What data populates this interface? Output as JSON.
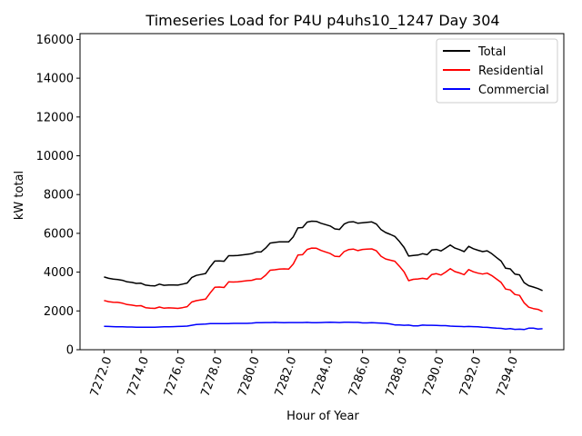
{
  "chart_data": {
    "type": "line",
    "title": "Timeseries Load for P4U p4uhs10_1247  Day 304",
    "xlabel": "Hour of Year",
    "ylabel": "kW total",
    "xlim": [
      7270.7,
      7296.9
    ],
    "ylim": [
      0,
      16300
    ],
    "xticks": [
      7272.0,
      7274.0,
      7276.0,
      7278.0,
      7280.0,
      7282.0,
      7284.0,
      7286.0,
      7288.0,
      7290.0,
      7292.0,
      7294.0
    ],
    "xtick_labels": [
      "7272.0",
      "7274.0",
      "7276.0",
      "7278.0",
      "7280.0",
      "7282.0",
      "7284.0",
      "7286.0",
      "7288.0",
      "7290.0",
      "7292.0",
      "7294.0"
    ],
    "yticks": [
      0,
      2000,
      4000,
      6000,
      8000,
      10000,
      12000,
      14000,
      16000
    ],
    "ytick_labels": [
      "0",
      "2000",
      "4000",
      "6000",
      "8000",
      "10000",
      "12000",
      "14000",
      "16000"
    ],
    "legend_position": "top-right",
    "series": [
      {
        "name": "Total",
        "color": "#000000",
        "x": [
          7272.0,
          7272.25,
          7272.5,
          7272.75,
          7273.0,
          7273.25,
          7273.5,
          7273.75,
          7274.0,
          7274.25,
          7274.5,
          7274.75,
          7275.0,
          7275.25,
          7275.5,
          7275.75,
          7276.0,
          7276.25,
          7276.5,
          7276.75,
          7277.0,
          7277.25,
          7277.5,
          7277.75,
          7278.0,
          7278.25,
          7278.5,
          7278.75,
          7279.0,
          7279.25,
          7279.5,
          7279.75,
          7280.0,
          7280.25,
          7280.5,
          7280.75,
          7281.0,
          7281.25,
          7281.5,
          7281.75,
          7282.0,
          7282.25,
          7282.5,
          7282.75,
          7283.0,
          7283.25,
          7283.5,
          7283.75,
          7284.0,
          7284.25,
          7284.5,
          7284.75,
          7285.0,
          7285.25,
          7285.5,
          7285.75,
          7286.0,
          7286.25,
          7286.5,
          7286.75,
          7287.0,
          7287.25,
          7287.5,
          7287.75,
          7288.0,
          7288.25,
          7288.5,
          7288.75,
          7289.0,
          7289.25,
          7289.5,
          7289.75,
          7290.0,
          7290.25,
          7290.5,
          7290.75,
          7291.0,
          7291.25,
          7291.5,
          7291.75,
          7292.0,
          7292.25,
          7292.5,
          7292.75,
          7293.0,
          7293.25,
          7293.5,
          7293.75,
          7294.0,
          7294.25,
          7294.5,
          7294.75,
          7295.0,
          7295.25,
          7295.5,
          7295.75
        ],
        "values": [
          3750,
          3680,
          3640,
          3620,
          3580,
          3500,
          3470,
          3420,
          3430,
          3330,
          3300,
          3290,
          3380,
          3320,
          3340,
          3340,
          3330,
          3380,
          3440,
          3720,
          3830,
          3880,
          3930,
          4280,
          4570,
          4580,
          4560,
          4850,
          4850,
          4860,
          4890,
          4920,
          4950,
          5040,
          5040,
          5240,
          5500,
          5530,
          5560,
          5560,
          5560,
          5820,
          6280,
          6300,
          6580,
          6630,
          6620,
          6520,
          6450,
          6380,
          6230,
          6200,
          6480,
          6580,
          6600,
          6520,
          6550,
          6570,
          6590,
          6480,
          6190,
          6040,
          5950,
          5840,
          5580,
          5270,
          4830,
          4860,
          4880,
          4950,
          4900,
          5140,
          5170,
          5090,
          5240,
          5400,
          5240,
          5160,
          5060,
          5330,
          5210,
          5130,
          5060,
          5100,
          4950,
          4760,
          4570,
          4200,
          4170,
          3900,
          3860,
          3460,
          3300,
          3230,
          3150,
          3050
        ]
      },
      {
        "name": "Residential",
        "color": "#ff0000",
        "x": [
          7272.0,
          7272.25,
          7272.5,
          7272.75,
          7273.0,
          7273.25,
          7273.5,
          7273.75,
          7274.0,
          7274.25,
          7274.5,
          7274.75,
          7275.0,
          7275.25,
          7275.5,
          7275.75,
          7276.0,
          7276.25,
          7276.5,
          7276.75,
          7277.0,
          7277.25,
          7277.5,
          7277.75,
          7278.0,
          7278.25,
          7278.5,
          7278.75,
          7279.0,
          7279.25,
          7279.5,
          7279.75,
          7280.0,
          7280.25,
          7280.5,
          7280.75,
          7281.0,
          7281.25,
          7281.5,
          7281.75,
          7282.0,
          7282.25,
          7282.5,
          7282.75,
          7283.0,
          7283.25,
          7283.5,
          7283.75,
          7284.0,
          7284.25,
          7284.5,
          7284.75,
          7285.0,
          7285.25,
          7285.5,
          7285.75,
          7286.0,
          7286.25,
          7286.5,
          7286.75,
          7287.0,
          7287.25,
          7287.5,
          7287.75,
          7288.0,
          7288.25,
          7288.5,
          7288.75,
          7289.0,
          7289.25,
          7289.5,
          7289.75,
          7290.0,
          7290.25,
          7290.5,
          7290.75,
          7291.0,
          7291.25,
          7291.5,
          7291.75,
          7292.0,
          7292.25,
          7292.5,
          7292.75,
          7293.0,
          7293.25,
          7293.5,
          7293.75,
          7294.0,
          7294.25,
          7294.5,
          7294.75,
          7295.0,
          7295.25,
          7295.5,
          7295.75
        ],
        "values": [
          2540,
          2480,
          2450,
          2440,
          2400,
          2330,
          2300,
          2260,
          2270,
          2170,
          2140,
          2130,
          2200,
          2140,
          2160,
          2150,
          2130,
          2170,
          2220,
          2460,
          2530,
          2570,
          2610,
          2930,
          3220,
          3230,
          3210,
          3500,
          3490,
          3500,
          3530,
          3560,
          3580,
          3650,
          3650,
          3840,
          4100,
          4120,
          4160,
          4170,
          4160,
          4420,
          4880,
          4900,
          5170,
          5240,
          5230,
          5120,
          5040,
          4960,
          4820,
          4800,
          5060,
          5160,
          5190,
          5110,
          5170,
          5190,
          5200,
          5100,
          4820,
          4680,
          4620,
          4560,
          4300,
          4010,
          3560,
          3630,
          3650,
          3680,
          3640,
          3880,
          3920,
          3850,
          4000,
          4180,
          4030,
          3960,
          3870,
          4130,
          4020,
          3950,
          3900,
          3950,
          3820,
          3650,
          3470,
          3130,
          3080,
          2850,
          2800,
          2420,
          2190,
          2120,
          2080,
          1970
        ]
      },
      {
        "name": "Commercial",
        "color": "#0000ff",
        "x": [
          7272.0,
          7272.25,
          7272.5,
          7272.75,
          7273.0,
          7273.25,
          7273.5,
          7273.75,
          7274.0,
          7274.25,
          7274.5,
          7274.75,
          7275.0,
          7275.25,
          7275.5,
          7275.75,
          7276.0,
          7276.25,
          7276.5,
          7276.75,
          7277.0,
          7277.25,
          7277.5,
          7277.75,
          7278.0,
          7278.25,
          7278.5,
          7278.75,
          7279.0,
          7279.25,
          7279.5,
          7279.75,
          7280.0,
          7280.25,
          7280.5,
          7280.75,
          7281.0,
          7281.25,
          7281.5,
          7281.75,
          7282.0,
          7282.25,
          7282.5,
          7282.75,
          7283.0,
          7283.25,
          7283.5,
          7283.75,
          7284.0,
          7284.25,
          7284.5,
          7284.75,
          7285.0,
          7285.25,
          7285.5,
          7285.75,
          7286.0,
          7286.25,
          7286.5,
          7286.75,
          7287.0,
          7287.25,
          7287.5,
          7287.75,
          7288.0,
          7288.25,
          7288.5,
          7288.75,
          7289.0,
          7289.25,
          7289.5,
          7289.75,
          7290.0,
          7290.25,
          7290.5,
          7290.75,
          7291.0,
          7291.25,
          7291.5,
          7291.75,
          7292.0,
          7292.25,
          7292.5,
          7292.75,
          7293.0,
          7293.25,
          7293.5,
          7293.75,
          7294.0,
          7294.25,
          7294.5,
          7294.75,
          7295.0,
          7295.25,
          7295.5,
          7295.75
        ],
        "values": [
          1210,
          1200,
          1190,
          1180,
          1180,
          1170,
          1170,
          1160,
          1160,
          1160,
          1160,
          1160,
          1170,
          1180,
          1180,
          1190,
          1200,
          1210,
          1220,
          1260,
          1300,
          1310,
          1320,
          1350,
          1350,
          1350,
          1350,
          1350,
          1360,
          1360,
          1360,
          1360,
          1370,
          1390,
          1390,
          1400,
          1400,
          1410,
          1400,
          1390,
          1400,
          1400,
          1400,
          1400,
          1410,
          1390,
          1390,
          1400,
          1410,
          1420,
          1410,
          1400,
          1420,
          1420,
          1410,
          1410,
          1380,
          1380,
          1390,
          1380,
          1370,
          1360,
          1330,
          1280,
          1280,
          1260,
          1270,
          1230,
          1230,
          1270,
          1260,
          1260,
          1250,
          1240,
          1240,
          1220,
          1210,
          1200,
          1190,
          1200,
          1190,
          1180,
          1160,
          1150,
          1130,
          1110,
          1100,
          1070,
          1090,
          1050,
          1060,
          1040,
          1110,
          1110,
          1070,
          1080
        ]
      }
    ]
  }
}
